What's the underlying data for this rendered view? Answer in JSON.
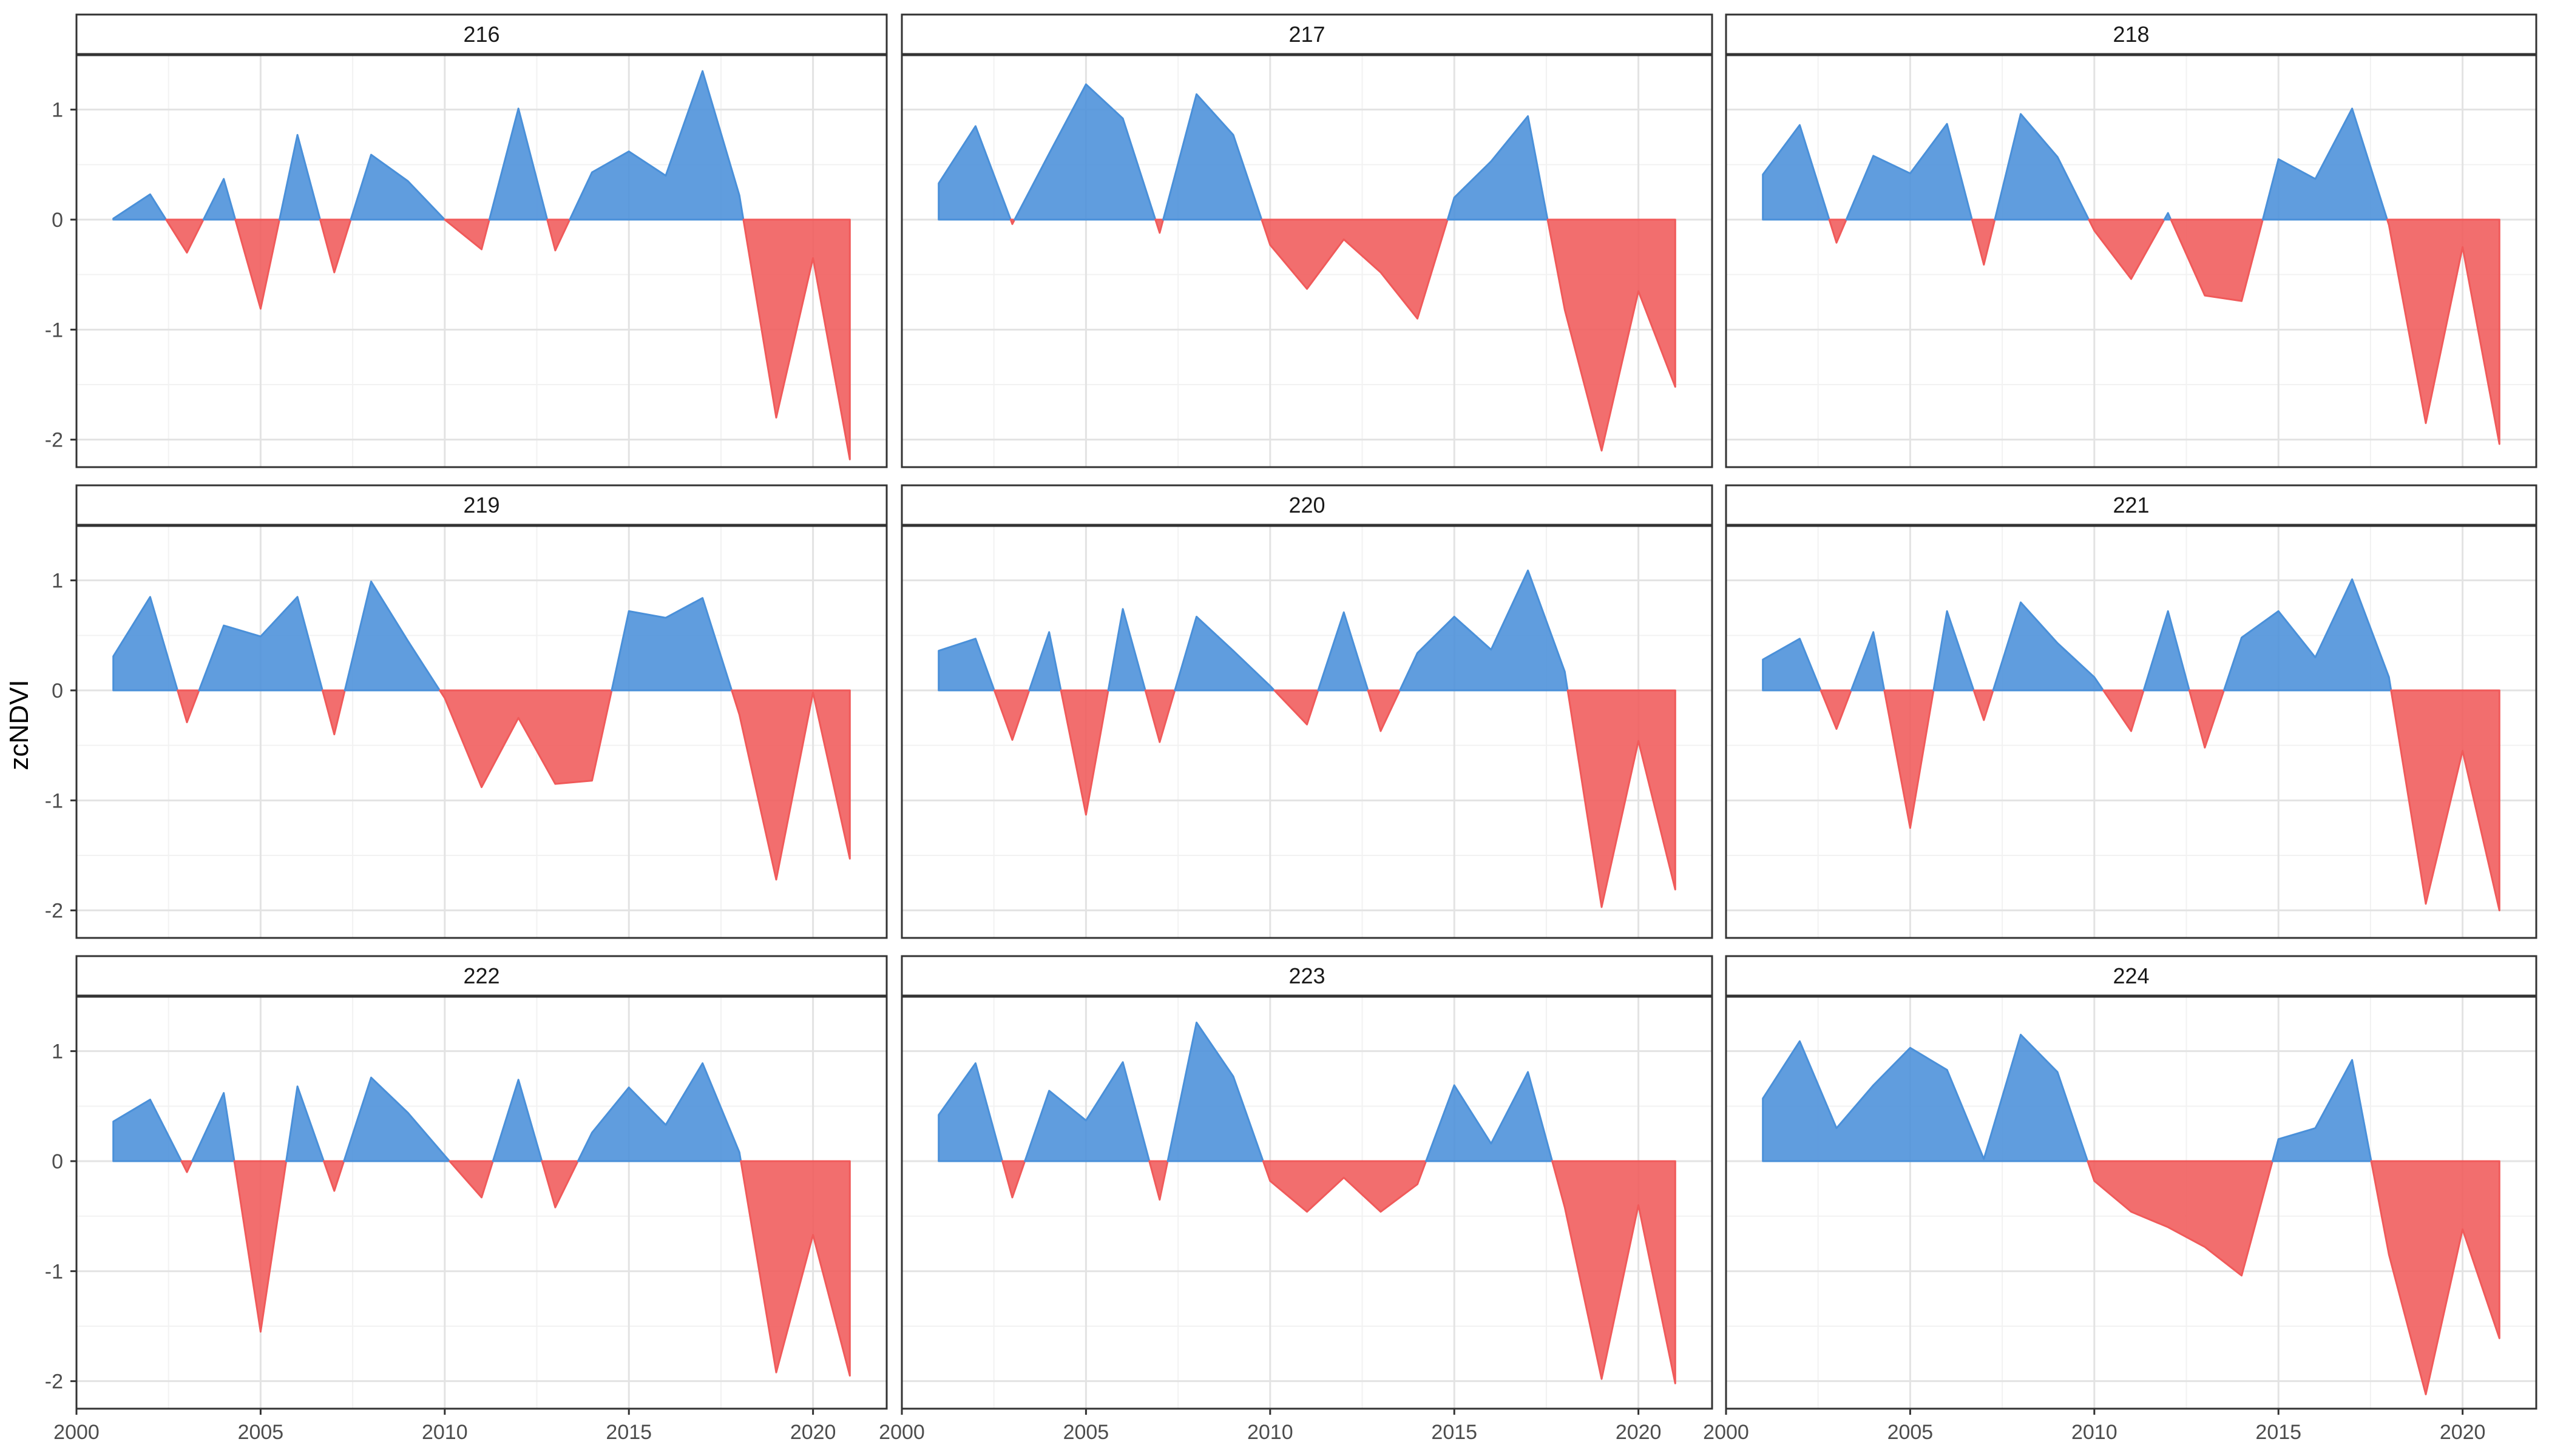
{
  "chart_data": {
    "type": "area",
    "ylabel": "zcNDVI",
    "xlim": [
      2000,
      2022
    ],
    "ylim": [
      -2.25,
      1.5
    ],
    "x_ticks": [
      2000,
      2005,
      2010,
      2015,
      2020
    ],
    "y_ticks": [
      -2,
      -1,
      0,
      1
    ],
    "x_tick_labels": [
      "2000",
      "2005",
      "2010",
      "2015",
      "2020"
    ],
    "y_tick_labels": [
      "-2",
      "-1",
      "0",
      "1"
    ],
    "grid": true,
    "positive_color": "#4a90d9",
    "negative_color": "#f05a5a",
    "x": [
      2001,
      2002,
      2003,
      2004,
      2005,
      2006,
      2007,
      2008,
      2009,
      2010,
      2011,
      2012,
      2013,
      2014,
      2015,
      2016,
      2017,
      2018,
      2019,
      2020,
      2021
    ],
    "panels": [
      {
        "label": "216",
        "values": [
          0.01,
          0.23,
          -0.3,
          0.37,
          -0.81,
          0.77,
          -0.48,
          0.59,
          0.35,
          0.0,
          -0.27,
          1.01,
          -0.28,
          0.43,
          0.62,
          0.4,
          1.35,
          0.22,
          -1.8,
          -0.35,
          -2.18
        ]
      },
      {
        "label": "217",
        "values": [
          0.33,
          0.85,
          -0.04,
          0.6,
          1.23,
          0.92,
          -0.12,
          1.14,
          0.77,
          -0.23,
          -0.63,
          -0.18,
          -0.48,
          -0.9,
          0.2,
          0.53,
          0.94,
          -0.82,
          -2.1,
          -0.65,
          -1.52
        ]
      },
      {
        "label": "218",
        "values": [
          0.41,
          0.86,
          -0.21,
          0.58,
          0.42,
          0.87,
          -0.41,
          0.96,
          0.57,
          -0.1,
          -0.54,
          0.06,
          -0.69,
          -0.74,
          0.55,
          0.37,
          1.01,
          -0.05,
          -1.85,
          -0.25,
          -2.04
        ]
      },
      {
        "label": "219",
        "values": [
          0.31,
          0.85,
          -0.29,
          0.59,
          0.49,
          0.85,
          -0.4,
          0.99,
          0.45,
          -0.07,
          -0.88,
          -0.25,
          -0.85,
          -0.82,
          0.72,
          0.66,
          0.84,
          -0.22,
          -1.72,
          -0.02,
          -1.53
        ]
      },
      {
        "label": "220",
        "values": [
          0.36,
          0.47,
          -0.45,
          0.53,
          -1.13,
          0.74,
          -0.47,
          0.67,
          0.36,
          0.04,
          -0.31,
          0.71,
          -0.37,
          0.34,
          0.67,
          0.37,
          1.09,
          0.17,
          -1.97,
          -0.46,
          -1.81
        ]
      },
      {
        "label": "221",
        "values": [
          0.28,
          0.47,
          -0.35,
          0.53,
          -1.25,
          0.72,
          -0.27,
          0.8,
          0.43,
          0.12,
          -0.37,
          0.72,
          -0.52,
          0.48,
          0.72,
          0.3,
          1.01,
          0.12,
          -1.94,
          -0.55,
          -2.0
        ]
      },
      {
        "label": "222",
        "values": [
          0.36,
          0.56,
          -0.1,
          0.62,
          -1.55,
          0.68,
          -0.27,
          0.76,
          0.44,
          0.05,
          -0.33,
          0.74,
          -0.42,
          0.26,
          0.67,
          0.33,
          0.89,
          0.08,
          -1.92,
          -0.67,
          -1.95
        ]
      },
      {
        "label": "223",
        "values": [
          0.42,
          0.89,
          -0.33,
          0.64,
          0.37,
          0.9,
          -0.35,
          1.26,
          0.77,
          -0.18,
          -0.46,
          -0.15,
          -0.46,
          -0.21,
          0.69,
          0.16,
          0.81,
          -0.42,
          -1.98,
          -0.4,
          -2.02
        ]
      },
      {
        "label": "224",
        "values": [
          0.57,
          1.09,
          0.3,
          0.69,
          1.03,
          0.83,
          0.02,
          1.15,
          0.81,
          -0.18,
          -0.46,
          -0.6,
          -0.78,
          -1.04,
          0.2,
          0.3,
          0.92,
          -0.85,
          -2.12,
          -0.62,
          -1.61
        ]
      }
    ]
  }
}
